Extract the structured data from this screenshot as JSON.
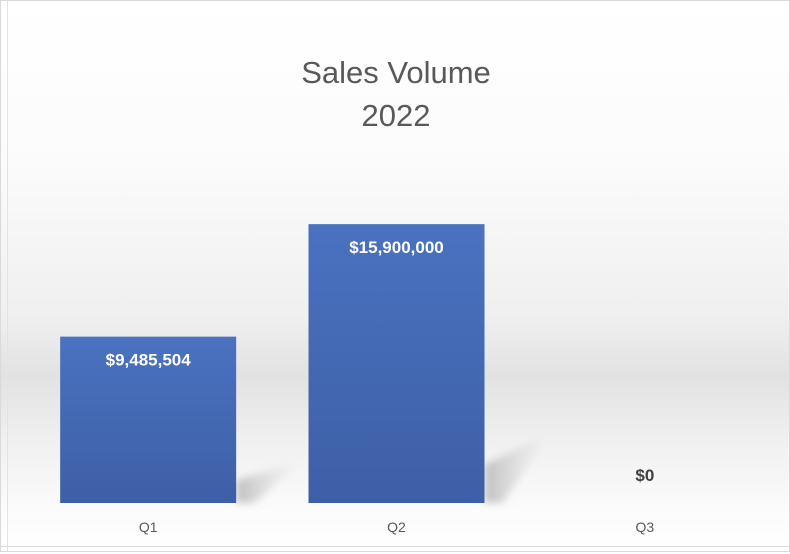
{
  "chart_data": {
    "type": "bar",
    "title_lines": [
      "Sales Volume",
      "2022"
    ],
    "categories": [
      "Q1",
      "Q2",
      "Q3"
    ],
    "values": [
      9485504,
      15900000,
      0
    ],
    "data_labels": [
      "$9,485,504",
      "$15,900,000",
      "$0"
    ],
    "xlabel": "",
    "ylabel": "",
    "ylim": [
      0,
      19500000
    ],
    "grid": false,
    "legend": "none",
    "colors": {
      "bar_top": "#4a72c0",
      "bar_bottom": "#3d5fa6",
      "label_inside": "#ffffff",
      "label_outside": "#404040",
      "title": "#595959"
    }
  }
}
